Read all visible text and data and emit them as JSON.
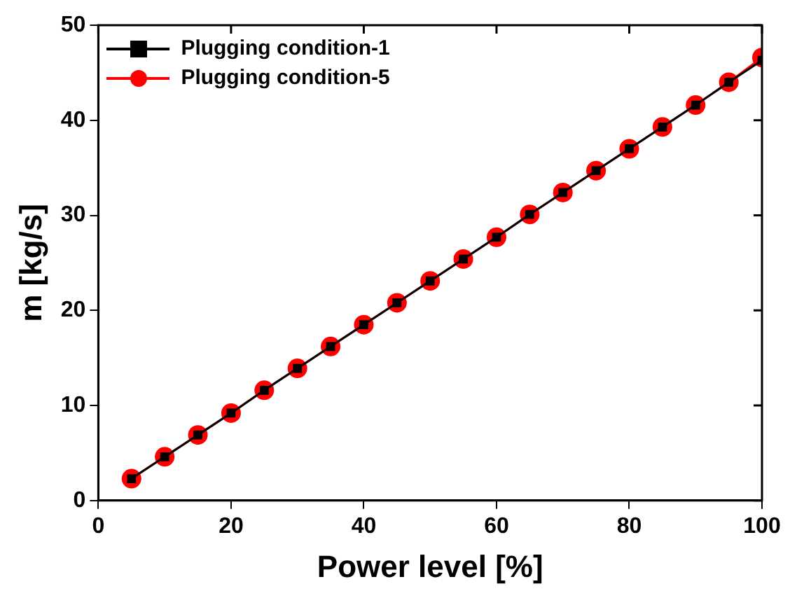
{
  "chart_data": {
    "type": "line",
    "xlabel": "Power level [%]",
    "ylabel": "m [kg/s]",
    "x": [
      5,
      10,
      15,
      20,
      25,
      30,
      35,
      40,
      45,
      50,
      55,
      60,
      65,
      70,
      75,
      80,
      85,
      90,
      95,
      100
    ],
    "series": [
      {
        "name": "Plugging condition-1",
        "color": "#000000",
        "marker": "square",
        "values": [
          2.3,
          4.6,
          6.9,
          9.2,
          11.6,
          13.9,
          16.2,
          18.5,
          20.8,
          23.1,
          25.4,
          27.7,
          30.1,
          32.4,
          34.7,
          37.0,
          39.3,
          41.6,
          44.0,
          46.3
        ]
      },
      {
        "name": "Plugging condition-5",
        "color": "#ff0000",
        "marker": "circle",
        "values": [
          2.3,
          4.6,
          6.9,
          9.2,
          11.6,
          13.9,
          16.2,
          18.5,
          20.8,
          23.1,
          25.4,
          27.7,
          30.1,
          32.4,
          34.7,
          37.0,
          39.3,
          41.6,
          44.0,
          46.6
        ]
      }
    ],
    "xlim": [
      0,
      100
    ],
    "xticks": [
      0,
      20,
      40,
      60,
      80,
      100
    ],
    "ylim": [
      0,
      50
    ],
    "yticks": [
      0,
      10,
      20,
      30,
      40,
      50
    ],
    "grid": false,
    "legend": "top left",
    "line_style": "solid"
  }
}
